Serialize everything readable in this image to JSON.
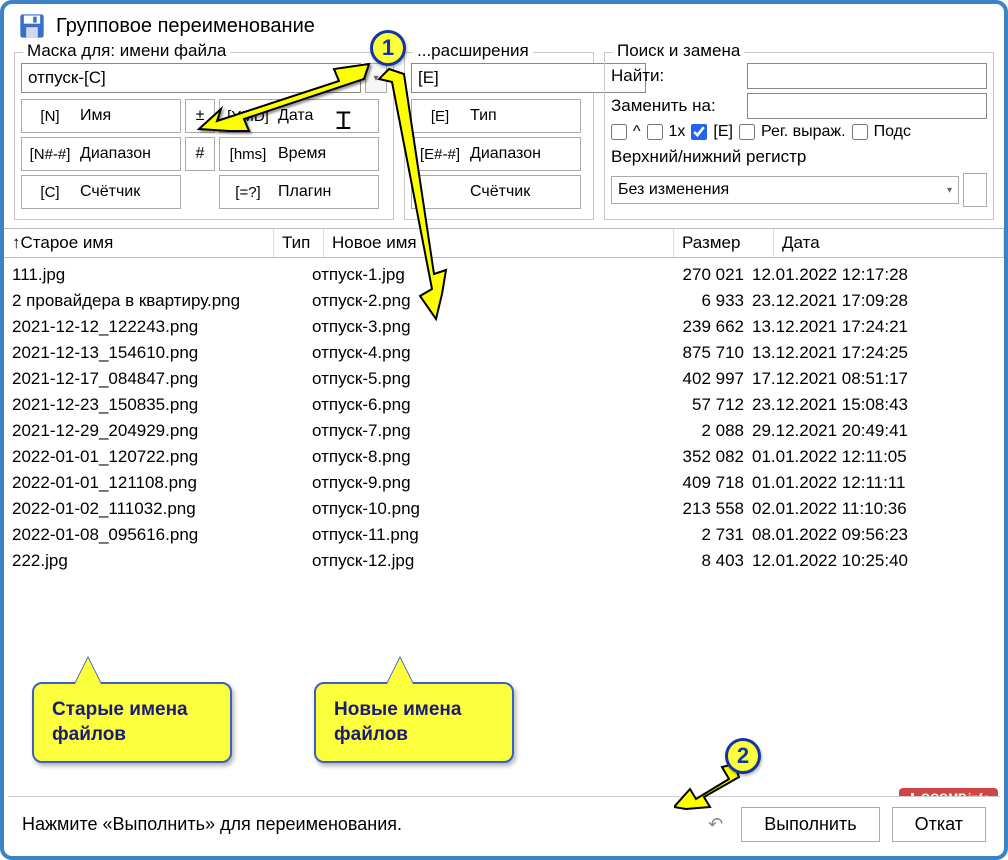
{
  "window": {
    "title": "Групповое переименование"
  },
  "filename_mask": {
    "legend": "Маска для: имени файла",
    "value": "отпуск-[C]",
    "buttons": {
      "n_code": "[N]",
      "n_label": "Имя",
      "pm": "±",
      "ymd_code": "[YMD]",
      "ymd_label": "Дата",
      "range_code": "[N#-#]",
      "range_label": "Диапазон",
      "hash": "#",
      "hms_code": "[hms]",
      "hms_label": "Время",
      "c_code": "[C]",
      "c_label": "Счётчик",
      "plugin_code": "[=?]",
      "plugin_label": "Плагин"
    }
  },
  "ext_mask": {
    "legend": "...расширения",
    "value": "[E]",
    "buttons": {
      "e_code": "[E]",
      "e_label": "Тип",
      "range_code": "[E#-#]",
      "range_label": "Диапазон",
      "counter_label": "Счётчик"
    }
  },
  "search": {
    "legend": "Поиск и замена",
    "find_label": "Найти:",
    "replace_label": "Заменить на:",
    "chk_caret": "^",
    "chk_1x": "1x",
    "chk_e": "[E]",
    "chk_regex": "Рег. выраж.",
    "chk_sub": "Подс",
    "case_label": "Верхний/нижний регистр",
    "case_value": "Без изменения"
  },
  "table": {
    "headers": {
      "old": "Старое имя",
      "type": "Тип",
      "new": "Новое имя",
      "size": "Размер",
      "date": "Дата"
    },
    "rows": [
      {
        "old": "111.jpg",
        "new": "отпуск-1.jpg",
        "size": "270 021",
        "date": "12.01.2022 12:17:28"
      },
      {
        "old": "2 провайдера в квартиру.png",
        "new": "отпуск-2.png",
        "size": "6 933",
        "date": "23.12.2021 17:09:28"
      },
      {
        "old": "2021-12-12_122243.png",
        "new": "отпуск-3.png",
        "size": "239 662",
        "date": "13.12.2021 17:24:21"
      },
      {
        "old": "2021-12-13_154610.png",
        "new": "отпуск-4.png",
        "size": "875 710",
        "date": "13.12.2021 17:24:25"
      },
      {
        "old": "2021-12-17_084847.png",
        "new": "отпуск-5.png",
        "size": "402 997",
        "date": "17.12.2021 08:51:17"
      },
      {
        "old": "2021-12-23_150835.png",
        "new": "отпуск-6.png",
        "size": "57 712",
        "date": "23.12.2021 15:08:43"
      },
      {
        "old": "2021-12-29_204929.png",
        "new": "отпуск-7.png",
        "size": "2 088",
        "date": "29.12.2021 20:49:41"
      },
      {
        "old": "2022-01-01_120722.png",
        "new": "отпуск-8.png",
        "size": "352 082",
        "date": "01.01.2022 12:11:05"
      },
      {
        "old": "2022-01-01_121108.png",
        "new": "отпуск-9.png",
        "size": "409 718",
        "date": "01.01.2022 12:11:11"
      },
      {
        "old": "2022-01-02_111032.png",
        "new": "отпуск-10.png",
        "size": "213 558",
        "date": "02.01.2022 11:10:36"
      },
      {
        "old": "2022-01-08_095616.png",
        "new": "отпуск-11.png",
        "size": "2 731",
        "date": "08.01.2022 09:56:23"
      },
      {
        "old": "222.jpg",
        "new": "отпуск-12.jpg",
        "size": "8 403",
        "date": "12.01.2022 10:25:40"
      }
    ]
  },
  "callouts": {
    "old_names": "Старые имена файлов",
    "new_names": "Новые имена файлов"
  },
  "badges": {
    "one": "1",
    "two": "2"
  },
  "footer": {
    "hint": "Нажмите «Выполнить» для переименования.",
    "execute": "Выполнить",
    "rollback": "Откат"
  },
  "logo": "OCOMP.info",
  "colors": {
    "callout_bg": "#fcff3c",
    "callout_border": "#3b5fc7",
    "frame_border": "#3b82c7",
    "arrow_fill": "#fcff00",
    "arrow_stroke": "#000"
  }
}
